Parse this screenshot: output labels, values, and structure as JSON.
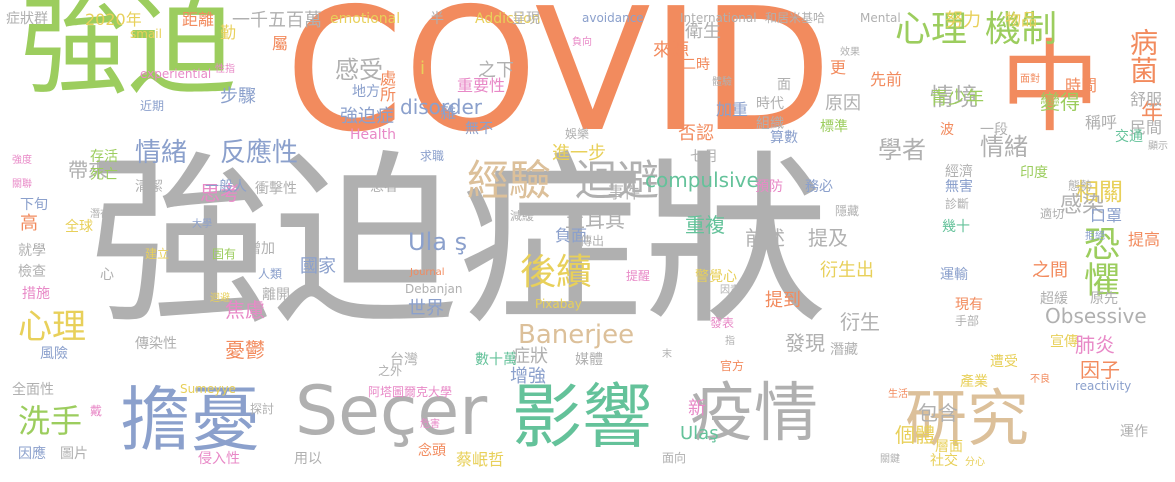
{
  "palette": {
    "green": "#9ccd5e",
    "orange": "#f28b5e",
    "gray": "#b0b0b0",
    "blue": "#8ba0cc",
    "teal": "#64c29a",
    "tan": "#dcc09a",
    "pink": "#e889c7",
    "yellow": "#e8d05a"
  },
  "words": [
    {
      "text": "COVID",
      "color": "#f28b5e"
    },
    {
      "text": "強迫症狀",
      "color": "#b0b0b0"
    },
    {
      "text": "強迫",
      "color": "#9ccd5e"
    },
    {
      "text": "中",
      "color": "#f28b5e"
    },
    {
      "text": "擔憂",
      "color": "#8ba0cc"
    },
    {
      "text": "Seçer",
      "color": "#b0b0b0"
    },
    {
      "text": "影響",
      "color": "#64c29a"
    },
    {
      "text": "疫情",
      "color": "#b0b0b0"
    },
    {
      "text": "研究",
      "color": "#dcc09a"
    },
    {
      "text": "心理",
      "color": "#9ccd5e"
    },
    {
      "text": "機制",
      "color": "#9ccd5e"
    },
    {
      "text": "病菌",
      "color": "#f28b5e"
    },
    {
      "text": "經驗",
      "color": "#dcc09a"
    },
    {
      "text": "迴避",
      "color": "#b0b0b0"
    },
    {
      "text": "後續",
      "color": "#e8d05a"
    },
    {
      "text": "恐懼",
      "color": "#9ccd5e"
    },
    {
      "text": "情緒",
      "color": "#8ba0cc"
    },
    {
      "text": "反應性",
      "color": "#8ba0cc"
    },
    {
      "text": "心理",
      "color": "#e8d05a"
    },
    {
      "text": "洗手",
      "color": "#9ccd5e"
    },
    {
      "text": "Banerjee",
      "color": "#dcc09a"
    },
    {
      "text": "Ula ş",
      "color": "#8ba0cc"
    },
    {
      "text": "感受",
      "color": "#b0b0b0"
    },
    {
      "text": "情境",
      "color": "#b0b0b0"
    },
    {
      "text": "學者",
      "color": "#b0b0b0"
    },
    {
      "text": "情緒",
      "color": "#b0b0b0"
    },
    {
      "text": "相關",
      "color": "#e8d05a"
    },
    {
      "text": "感染",
      "color": "#b0b0b0"
    },
    {
      "text": "年",
      "color": "#f28b5e"
    },
    {
      "text": "變得",
      "color": "#9ccd5e"
    },
    {
      "text": "青少年",
      "color": "#9ccd5e"
    },
    {
      "text": "原因",
      "color": "#b0b0b0"
    },
    {
      "text": "compulsive",
      "color": "#64c29a"
    },
    {
      "text": "disorder",
      "color": "#8ba0cc"
    },
    {
      "text": "Obsessive",
      "color": "#b0b0b0"
    },
    {
      "text": "重複",
      "color": "#64c29a"
    },
    {
      "text": "前述",
      "color": "#b0b0b0"
    },
    {
      "text": "提及",
      "color": "#b0b0b0"
    },
    {
      "text": "土耳其",
      "color": "#b0b0b0"
    },
    {
      "text": "帶來",
      "color": "#b0b0b0"
    },
    {
      "text": "思考",
      "color": "#e889c7"
    },
    {
      "text": "焦慮",
      "color": "#e889c7"
    },
    {
      "text": "肺炎",
      "color": "#e889c7"
    },
    {
      "text": "國家",
      "color": "#8ba0cc"
    },
    {
      "text": "世界",
      "color": "#8ba0cc"
    },
    {
      "text": "衍生出",
      "color": "#e8d05a"
    },
    {
      "text": "提到",
      "color": "#f28b5e"
    },
    {
      "text": "之間",
      "color": "#f28b5e"
    },
    {
      "text": "因子",
      "color": "#f28b5e"
    },
    {
      "text": "憂鬱",
      "color": "#f28b5e"
    },
    {
      "text": "發現",
      "color": "#b0b0b0"
    },
    {
      "text": "衍生",
      "color": "#b0b0b0"
    },
    {
      "text": "包含",
      "color": "#b0b0b0"
    },
    {
      "text": "個體",
      "color": "#e8d05a"
    },
    {
      "text": "Ulaş",
      "color": "#64c29a"
    },
    {
      "text": "新",
      "color": "#e889c7"
    },
    {
      "text": "症狀",
      "color": "#b0b0b0"
    },
    {
      "text": "增強",
      "color": "#8ba0cc"
    },
    {
      "text": "負面",
      "color": "#8ba0cc"
    },
    {
      "text": "進一步",
      "color": "#e8d05a"
    },
    {
      "text": "事件",
      "color": "#b0b0b0"
    },
    {
      "text": "否認",
      "color": "#f28b5e"
    },
    {
      "text": "加重",
      "color": "#8ba0cc"
    },
    {
      "text": "衛生",
      "color": "#b0b0b0"
    },
    {
      "text": "來源",
      "color": "#f28b5e"
    },
    {
      "text": "之下",
      "color": "#b0b0b0"
    },
    {
      "text": "重要性",
      "color": "#e889c7"
    },
    {
      "text": "強迫症",
      "color": "#8ba0cc"
    },
    {
      "text": "處所",
      "color": "#f28b5e"
    },
    {
      "text": "地方",
      "color": "#8ba0cc"
    },
    {
      "text": "步驟",
      "color": "#8ba0cc"
    },
    {
      "text": "i",
      "color": "#e8d05a"
    },
    {
      "text": "一千五百萬",
      "color": "#b0b0b0"
    },
    {
      "text": "距離",
      "color": "#f28b5e"
    },
    {
      "text": "2020年",
      "color": "#e8d05a"
    },
    {
      "text": "症狀群",
      "color": "#b0b0b0"
    },
    {
      "text": "勤",
      "color": "#e8d05a"
    },
    {
      "text": "屬",
      "color": "#f28b5e"
    },
    {
      "text": "emotional",
      "color": "#e8d05a"
    },
    {
      "text": "半",
      "color": "#b0b0b0"
    },
    {
      "text": "Addiction",
      "color": "#e8d05a"
    },
    {
      "text": "呈現",
      "color": "#b0b0b0"
    },
    {
      "text": "avoidance",
      "color": "#8ba0cc"
    },
    {
      "text": "International",
      "color": "#b0b0b0"
    },
    {
      "text": "和居米基哈",
      "color": "#b0b0b0"
    },
    {
      "text": "Mental",
      "color": "#b0b0b0"
    },
    {
      "text": "努力",
      "color": "#e8d05a"
    },
    {
      "text": "物品",
      "color": "#e8d05a"
    },
    {
      "text": "效果",
      "color": "#b0b0b0"
    },
    {
      "text": "smail",
      "color": "#e8d05a"
    },
    {
      "text": "性指",
      "color": "#e889c7"
    },
    {
      "text": "experiential",
      "color": "#e889c7"
    },
    {
      "text": "近期",
      "color": "#8ba0cc"
    },
    {
      "text": "負向",
      "color": "#e889c7"
    },
    {
      "text": "體驗",
      "color": "#b0b0b0"
    },
    {
      "text": "二時",
      "color": "#f28b5e"
    },
    {
      "text": "先前",
      "color": "#f28b5e"
    },
    {
      "text": "更",
      "color": "#f28b5e"
    },
    {
      "text": "面",
      "color": "#b0b0b0"
    },
    {
      "text": "面對",
      "color": "#f28b5e"
    },
    {
      "text": "時間",
      "color": "#f28b5e"
    },
    {
      "text": "舒服",
      "color": "#b0b0b0"
    },
    {
      "text": "民間",
      "color": "#b0b0b0"
    },
    {
      "text": "稱呼",
      "color": "#b0b0b0"
    },
    {
      "text": "交通",
      "color": "#64c29a"
    },
    {
      "text": "顯示",
      "color": "#b0b0b0"
    },
    {
      "text": "Health",
      "color": "#e889c7"
    },
    {
      "text": "雜",
      "color": "#8ba0cc"
    },
    {
      "text": "無不",
      "color": "#8ba0cc"
    },
    {
      "text": "時代",
      "color": "#b0b0b0"
    },
    {
      "text": "組織",
      "color": "#b0b0b0"
    },
    {
      "text": "標準",
      "color": "#9ccd5e"
    },
    {
      "text": "算數",
      "color": "#8ba0cc"
    },
    {
      "text": "波",
      "color": "#f28b5e"
    },
    {
      "text": "一段",
      "color": "#b0b0b0"
    },
    {
      "text": "七月",
      "color": "#b0b0b0"
    },
    {
      "text": "娛樂",
      "color": "#b0b0b0"
    },
    {
      "text": "求職",
      "color": "#8ba0cc"
    },
    {
      "text": "存活",
      "color": "#9ccd5e"
    },
    {
      "text": "強度",
      "color": "#e889c7"
    },
    {
      "text": "死亡",
      "color": "#9ccd5e"
    },
    {
      "text": "關聯",
      "color": "#e889c7"
    },
    {
      "text": "清潔",
      "color": "#b0b0b0"
    },
    {
      "text": "一般人",
      "color": "#8ba0cc"
    },
    {
      "text": "衝擊性",
      "color": "#b0b0b0"
    },
    {
      "text": "患者",
      "color": "#b0b0b0"
    },
    {
      "text": "預防",
      "color": "#e889c7"
    },
    {
      "text": "務必",
      "color": "#8ba0cc"
    },
    {
      "text": "經濟",
      "color": "#b0b0b0"
    },
    {
      "text": "無害",
      "color": "#8ba0cc"
    },
    {
      "text": "印度",
      "color": "#9ccd5e"
    },
    {
      "text": "態勢",
      "color": "#b0b0b0"
    },
    {
      "text": "下旬",
      "color": "#8ba0cc"
    },
    {
      "text": "高",
      "color": "#f28b5e"
    },
    {
      "text": "潛在",
      "color": "#b0b0b0"
    },
    {
      "text": "減緩",
      "color": "#b0b0b0"
    },
    {
      "text": "隱藏",
      "color": "#b0b0b0"
    },
    {
      "text": "診斷",
      "color": "#b0b0b0"
    },
    {
      "text": "適切",
      "color": "#b0b0b0"
    },
    {
      "text": "口罩",
      "color": "#8ba0cc"
    },
    {
      "text": "全球",
      "color": "#e8d05a"
    },
    {
      "text": "大學",
      "color": "#8ba0cc"
    },
    {
      "text": "幾十",
      "color": "#64c29a"
    },
    {
      "text": "就學",
      "color": "#b0b0b0"
    },
    {
      "text": "增加",
      "color": "#b0b0b0"
    },
    {
      "text": "傳出",
      "color": "#b0b0b0"
    },
    {
      "text": "心",
      "color": "#b0b0b0"
    },
    {
      "text": "建立",
      "color": "#e8d05a"
    },
    {
      "text": "固有",
      "color": "#9ccd5e"
    },
    {
      "text": "拒絕",
      "color": "#8ba0cc"
    },
    {
      "text": "提高",
      "color": "#f28b5e"
    },
    {
      "text": "檢查",
      "color": "#b0b0b0"
    },
    {
      "text": "人類",
      "color": "#8ba0cc"
    },
    {
      "text": "Journal",
      "color": "#f28b5e"
    },
    {
      "text": "提醒",
      "color": "#e889c7"
    },
    {
      "text": "警覺心",
      "color": "#e8d05a"
    },
    {
      "text": "運輸",
      "color": "#8ba0cc"
    },
    {
      "text": "措施",
      "color": "#e889c7"
    },
    {
      "text": "Debanjan",
      "color": "#b0b0b0"
    },
    {
      "text": "因素",
      "color": "#b0b0b0"
    },
    {
      "text": "超緩",
      "color": "#b0b0b0"
    },
    {
      "text": "原先",
      "color": "#b0b0b0"
    },
    {
      "text": "迴避",
      "color": "#e8d05a"
    },
    {
      "text": "離開",
      "color": "#b0b0b0"
    },
    {
      "text": "Pixabay",
      "color": "#e8d05a"
    },
    {
      "text": "現有",
      "color": "#f28b5e"
    },
    {
      "text": "手部",
      "color": "#b0b0b0"
    },
    {
      "text": "風險",
      "color": "#8ba0cc"
    },
    {
      "text": "傳染性",
      "color": "#b0b0b0"
    },
    {
      "text": "發表",
      "color": "#e889c7"
    },
    {
      "text": "指",
      "color": "#b0b0b0"
    },
    {
      "text": "潛藏",
      "color": "#b0b0b0"
    },
    {
      "text": "宣傳",
      "color": "#e8d05a"
    },
    {
      "text": "台灣",
      "color": "#b0b0b0"
    },
    {
      "text": "數十萬",
      "color": "#64c29a"
    },
    {
      "text": "媒體",
      "color": "#b0b0b0"
    },
    {
      "text": "末",
      "color": "#b0b0b0"
    },
    {
      "text": "遭受",
      "color": "#e8d05a"
    },
    {
      "text": "產業",
      "color": "#e8d05a"
    },
    {
      "text": "不良",
      "color": "#f28b5e"
    },
    {
      "text": "全面性",
      "color": "#b0b0b0"
    },
    {
      "text": "Sumeyye",
      "color": "#e8d05a"
    },
    {
      "text": "之外",
      "color": "#b0b0b0"
    },
    {
      "text": "阿塔圖爾克大學",
      "color": "#e889c7"
    },
    {
      "text": "官方",
      "color": "#f28b5e"
    },
    {
      "text": "生活",
      "color": "#f28b5e"
    },
    {
      "text": "reactivity",
      "color": "#8ba0cc"
    },
    {
      "text": "戴",
      "color": "#e889c7"
    },
    {
      "text": "探討",
      "color": "#b0b0b0"
    },
    {
      "text": "危害",
      "color": "#e889c7"
    },
    {
      "text": "層面",
      "color": "#e8d05a"
    },
    {
      "text": "運作",
      "color": "#b0b0b0"
    },
    {
      "text": "因應",
      "color": "#8ba0cc"
    },
    {
      "text": "圖片",
      "color": "#b0b0b0"
    },
    {
      "text": "侵入性",
      "color": "#e889c7"
    },
    {
      "text": "用以",
      "color": "#b0b0b0"
    },
    {
      "text": "念頭",
      "color": "#f28b5e"
    },
    {
      "text": "蔡岷哲",
      "color": "#e8d05a"
    },
    {
      "text": "面向",
      "color": "#b0b0b0"
    },
    {
      "text": "關鍵",
      "color": "#b0b0b0"
    },
    {
      "text": "社交",
      "color": "#e8d05a"
    },
    {
      "text": "分心",
      "color": "#e8d05a"
    }
  ]
}
